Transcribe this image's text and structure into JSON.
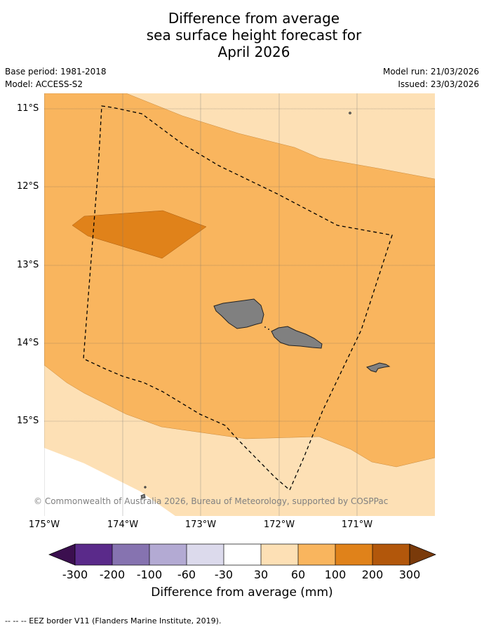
{
  "title_lines": [
    "Difference from average",
    "sea surface height forecast for",
    "April 2026"
  ],
  "base_period": "Base period: 1981-2018",
  "model": "Model: ACCESS-S2",
  "model_run": "Model run: 21/03/2026",
  "issued": "Issued: 23/03/2026",
  "lat_labels": [
    "11°S",
    "12°S",
    "13°S",
    "14°S",
    "15°S"
  ],
  "lon_labels": [
    "175°W",
    "174°W",
    "173°W",
    "172°W",
    "171°W"
  ],
  "copyright": "© Commonwealth of Australia 2026, Bureau of Meteorology, supported by COSPPac",
  "colorbar": {
    "ticks": [
      "-300",
      "-200",
      "-100",
      "-60",
      "-30",
      "30",
      "60",
      "100",
      "200",
      "300"
    ],
    "title": "Difference from average (mm)",
    "colors": [
      "#3b0f4f",
      "#5a2a8a",
      "#8673b0",
      "#b3aad3",
      "#dcdaec",
      "#ffffff",
      "#fde0b5",
      "#f9b55e",
      "#e0821a",
      "#b2570b",
      "#7a3a0a"
    ]
  },
  "footnote": "--  --  -- EEZ border V11 (Flanders Marine Institute, 2019).",
  "colors": {
    "band_30_60": "#fde0b5",
    "band_60_100": "#f9b55e",
    "band_100_200": "#e0821a",
    "land": "#808080"
  }
}
